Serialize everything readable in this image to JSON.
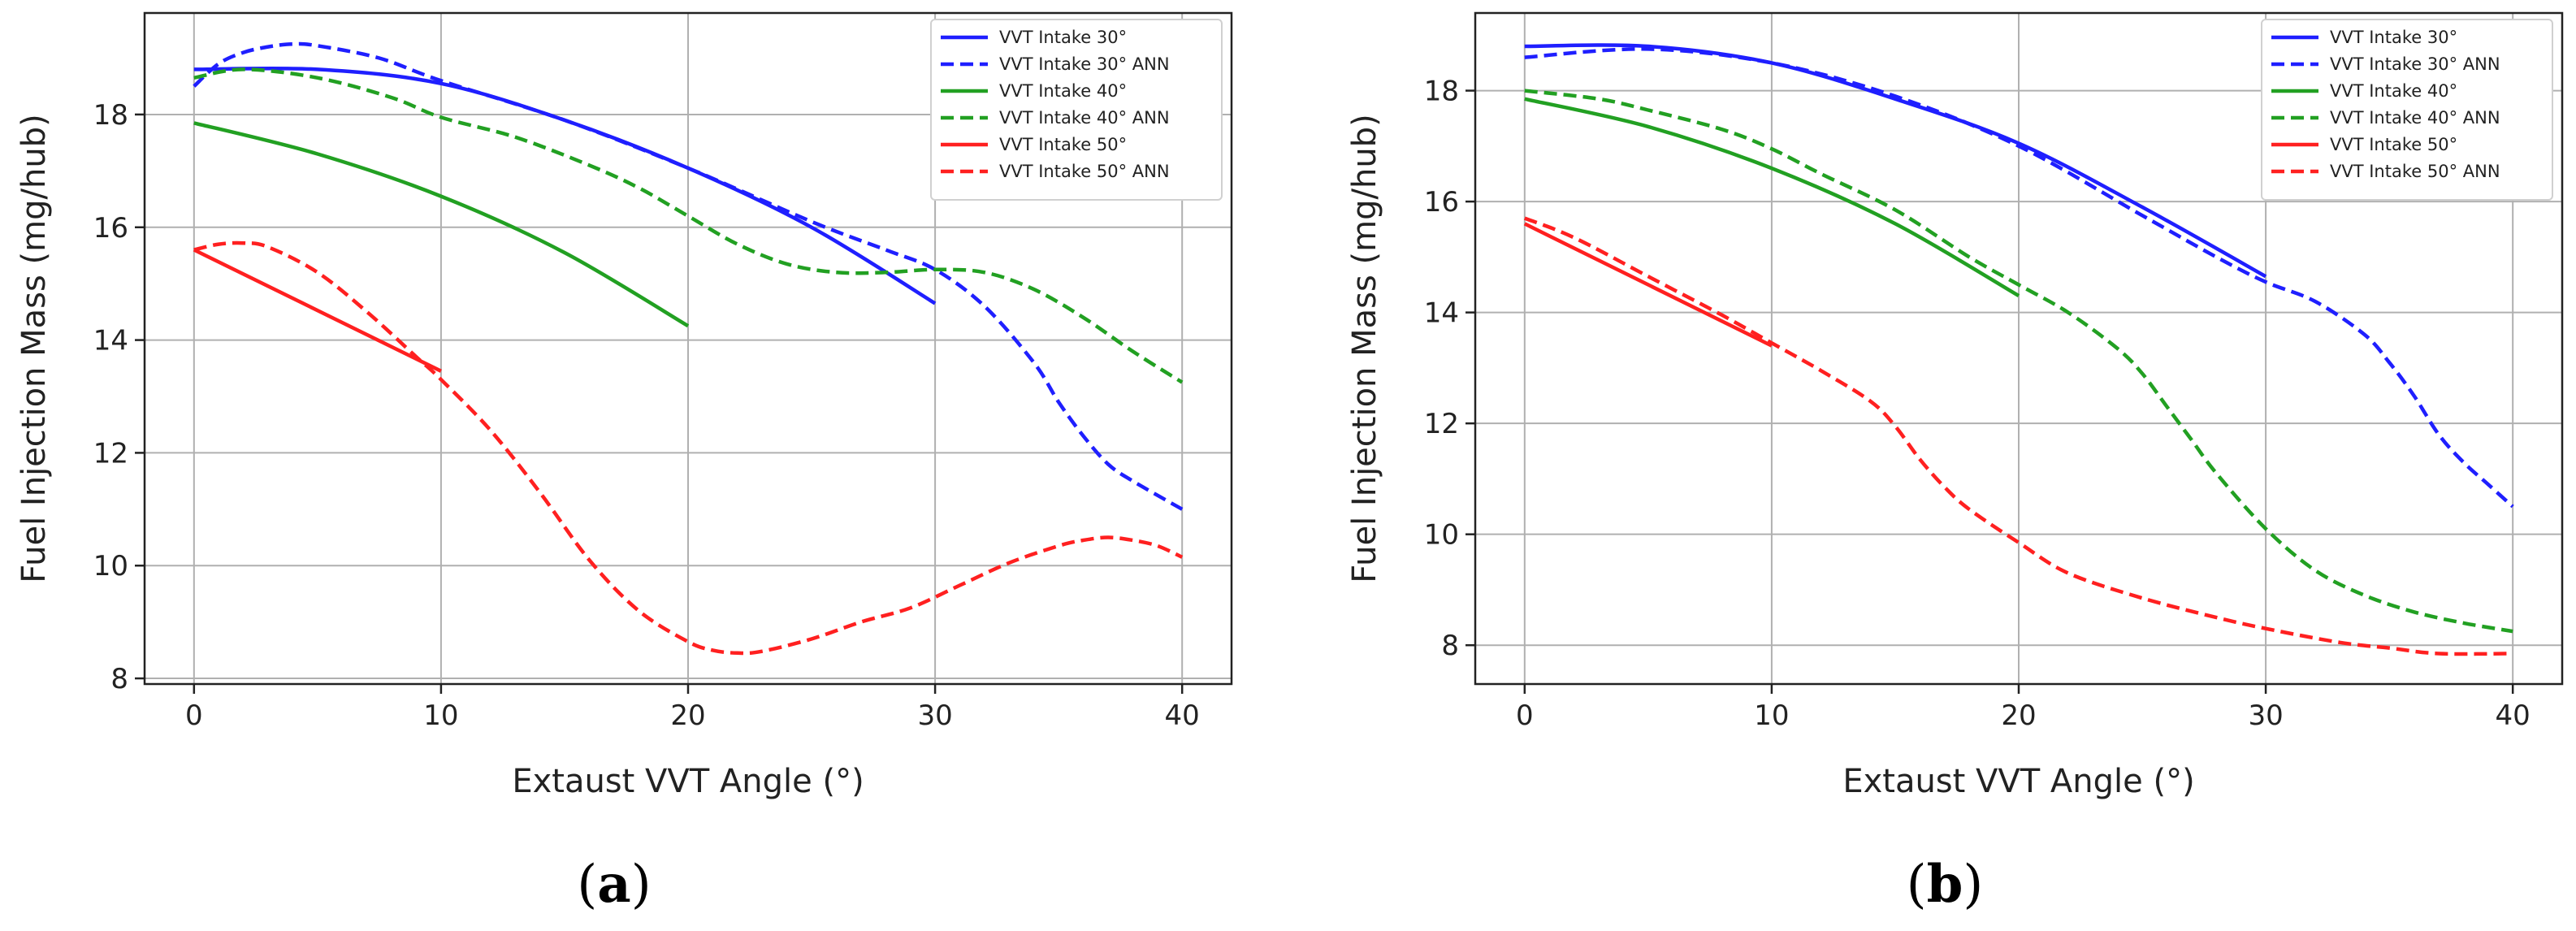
{
  "chart_data": [
    {
      "type": "line",
      "caption": "a",
      "xlabel": "Extaust VVT Angle (°)",
      "ylabel": "Fuel Injection Mass (mg/hub)",
      "xlim": [
        -2,
        42
      ],
      "ylim": [
        7.9,
        19.8
      ],
      "xticks": [
        "0",
        "10",
        "20",
        "30",
        "40"
      ],
      "yticks": [
        "8",
        "10",
        "12",
        "14",
        "16",
        "18"
      ],
      "grid": true,
      "legend_position": "top-right",
      "series": [
        {
          "name": "VVT Intake 30°",
          "color": "#1f1fff",
          "dash": "solid",
          "x": [
            0,
            5,
            10,
            15,
            20,
            25,
            30
          ],
          "y": [
            18.8,
            18.8,
            18.55,
            17.9,
            17.05,
            16.0,
            14.65
          ]
        },
        {
          "name": "VVT Intake 30° ANN",
          "color": "#1f1fff",
          "dash": "dashed",
          "x": [
            0,
            1,
            2,
            3,
            4,
            5,
            7.5,
            10,
            15,
            20,
            25,
            28,
            30,
            32,
            34,
            35,
            36,
            37,
            38,
            40
          ],
          "y": [
            18.5,
            18.9,
            19.1,
            19.2,
            19.25,
            19.22,
            19.0,
            18.6,
            17.9,
            17.05,
            16.1,
            15.6,
            15.25,
            14.6,
            13.6,
            12.9,
            12.3,
            11.8,
            11.5,
            11.0
          ]
        },
        {
          "name": "VVT Intake 40°",
          "color": "#22a022",
          "dash": "solid",
          "x": [
            0,
            5,
            10,
            15,
            20
          ],
          "y": [
            17.85,
            17.3,
            16.55,
            15.55,
            14.25
          ]
        },
        {
          "name": "VVT Intake 40° ANN",
          "color": "#22a022",
          "dash": "dashed",
          "x": [
            0,
            2,
            5,
            8,
            10,
            13,
            16,
            18,
            20,
            22,
            24,
            26,
            28,
            30,
            32,
            34,
            36,
            38,
            40
          ],
          "y": [
            18.65,
            18.8,
            18.65,
            18.3,
            17.95,
            17.6,
            17.1,
            16.7,
            16.2,
            15.7,
            15.35,
            15.2,
            15.2,
            15.25,
            15.2,
            14.9,
            14.4,
            13.8,
            13.25
          ]
        },
        {
          "name": "VVT Intake 50°",
          "color": "#ff2020",
          "dash": "solid",
          "x": [
            0,
            10
          ],
          "y": [
            15.6,
            13.45
          ]
        },
        {
          "name": "VVT Intake 50° ANN",
          "color": "#ff2020",
          "dash": "dashed",
          "x": [
            0,
            1,
            2,
            3,
            5,
            7,
            9,
            10,
            12,
            14,
            16,
            18,
            20,
            21,
            22,
            23,
            25,
            27,
            29,
            31,
            33,
            35,
            36,
            37,
            38,
            39,
            40
          ],
          "y": [
            15.6,
            15.7,
            15.72,
            15.65,
            15.2,
            14.5,
            13.7,
            13.3,
            12.4,
            11.3,
            10.1,
            9.2,
            8.65,
            8.5,
            8.45,
            8.48,
            8.7,
            9.0,
            9.25,
            9.65,
            10.05,
            10.35,
            10.45,
            10.5,
            10.45,
            10.35,
            10.15
          ]
        }
      ]
    },
    {
      "type": "line",
      "caption": "b",
      "xlabel": "Extaust VVT Angle (°)",
      "ylabel": "Fuel Injection Mass (mg/hub)",
      "xlim": [
        -2,
        42
      ],
      "ylim": [
        7.3,
        19.4
      ],
      "xticks": [
        "0",
        "10",
        "20",
        "30",
        "40"
      ],
      "yticks": [
        "8",
        "10",
        "12",
        "14",
        "16",
        "18"
      ],
      "grid": true,
      "legend_position": "top-right",
      "series": [
        {
          "name": "VVT Intake 30°",
          "color": "#1f1fff",
          "dash": "solid",
          "x": [
            0,
            5,
            10,
            15,
            20,
            25,
            30
          ],
          "y": [
            18.8,
            18.8,
            18.5,
            17.85,
            17.05,
            15.9,
            14.65
          ]
        },
        {
          "name": "VVT Intake 30° ANN",
          "color": "#1f1fff",
          "dash": "dashed",
          "x": [
            0,
            5,
            10,
            15,
            20,
            25,
            28,
            30,
            32,
            34,
            35,
            36,
            37,
            38,
            39,
            40
          ],
          "y": [
            18.6,
            18.75,
            18.5,
            17.9,
            17.0,
            15.75,
            15.0,
            14.55,
            14.2,
            13.6,
            13.1,
            12.5,
            11.8,
            11.3,
            10.9,
            10.5
          ]
        },
        {
          "name": "VVT Intake 40°",
          "color": "#22a022",
          "dash": "solid",
          "x": [
            0,
            5,
            10,
            15,
            20
          ],
          "y": [
            17.85,
            17.35,
            16.6,
            15.6,
            14.3
          ]
        },
        {
          "name": "VVT Intake 40° ANN",
          "color": "#22a022",
          "dash": "dashed",
          "x": [
            0,
            3,
            5,
            8,
            10,
            12,
            15,
            18,
            20,
            22,
            24,
            25,
            26,
            27,
            28,
            30,
            32,
            34,
            36,
            38,
            40
          ],
          "y": [
            18.0,
            17.85,
            17.65,
            17.3,
            16.95,
            16.5,
            15.85,
            15.0,
            14.5,
            14.0,
            13.35,
            12.9,
            12.3,
            11.7,
            11.1,
            10.1,
            9.35,
            8.9,
            8.6,
            8.4,
            8.25
          ]
        },
        {
          "name": "VVT Intake 50°",
          "color": "#ff2020",
          "dash": "solid",
          "x": [
            0,
            10
          ],
          "y": [
            15.6,
            13.4
          ]
        },
        {
          "name": "VVT Intake 50° ANN",
          "color": "#ff2020",
          "dash": "dashed",
          "x": [
            0,
            2,
            5,
            8,
            10,
            12,
            14,
            15,
            16,
            17,
            18,
            20,
            22,
            25,
            28,
            30,
            33,
            35,
            37,
            40
          ],
          "y": [
            15.7,
            15.35,
            14.65,
            13.95,
            13.45,
            12.95,
            12.4,
            11.95,
            11.35,
            10.85,
            10.45,
            9.85,
            9.3,
            8.85,
            8.5,
            8.3,
            8.05,
            7.95,
            7.85,
            7.85
          ]
        }
      ]
    }
  ]
}
